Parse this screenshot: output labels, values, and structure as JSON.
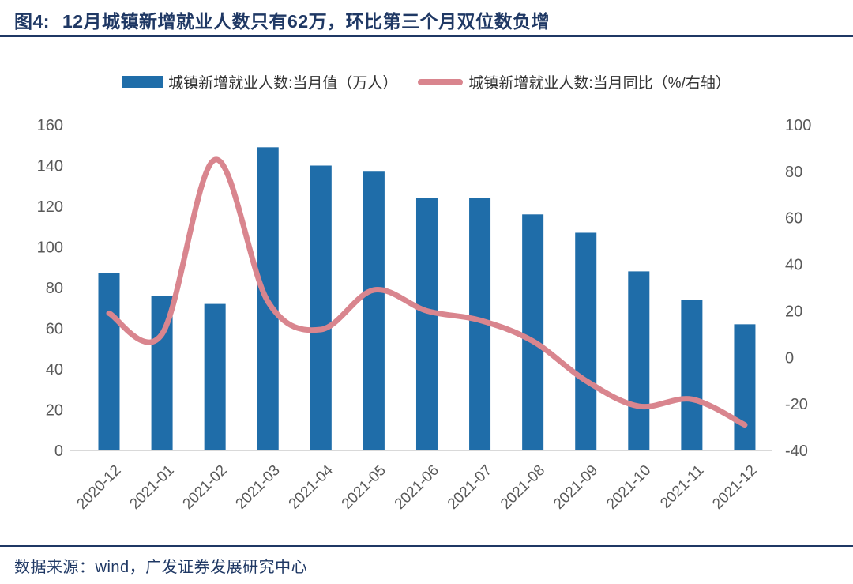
{
  "header": {
    "fig_label": "图4:",
    "title": "12月城镇新增就业人数只有62万，环比第三个月双位数负增"
  },
  "legend": {
    "bar_label": "城镇新增就业人数:当月值（万人）",
    "line_label": "城镇新增就业人数:当月同比（%/右轴）"
  },
  "footer": {
    "source": "数据来源：wind，广发证券发展研究中心"
  },
  "colors": {
    "title_text": "#1f3864",
    "axis_text": "#595959",
    "baseline": "#d9d9d9"
  },
  "chart_data": {
    "type": "bar+line combo",
    "categories": [
      "2020-12",
      "2021-01",
      "2021-02",
      "2021-03",
      "2021-04",
      "2021-05",
      "2021-06",
      "2021-07",
      "2021-08",
      "2021-09",
      "2021-10",
      "2021-11",
      "2021-12"
    ],
    "series": [
      {
        "name": "城镇新增就业人数:当月值（万人）",
        "type": "bar",
        "axis": "left",
        "color": "#1f6da9",
        "values": [
          87,
          76,
          72,
          149,
          140,
          137,
          124,
          124,
          116,
          107,
          88,
          74,
          62
        ]
      },
      {
        "name": "城镇新增就业人数:当月同比（%/右轴）",
        "type": "line",
        "axis": "right",
        "color": "#d9858e",
        "values": [
          19,
          10,
          85,
          24,
          12,
          29,
          20,
          16,
          7,
          -10,
          -21,
          -18,
          -29
        ]
      }
    ],
    "left_axis": {
      "min": 0,
      "max": 160,
      "ticks": [
        0,
        20,
        40,
        60,
        80,
        100,
        120,
        140,
        160
      ]
    },
    "right_axis": {
      "min": -40,
      "max": 100,
      "ticks": [
        -40,
        -20,
        0,
        20,
        40,
        60,
        80,
        100
      ]
    },
    "grid": "off",
    "legend_position": "top-center",
    "x_tick_rotation": -45
  }
}
